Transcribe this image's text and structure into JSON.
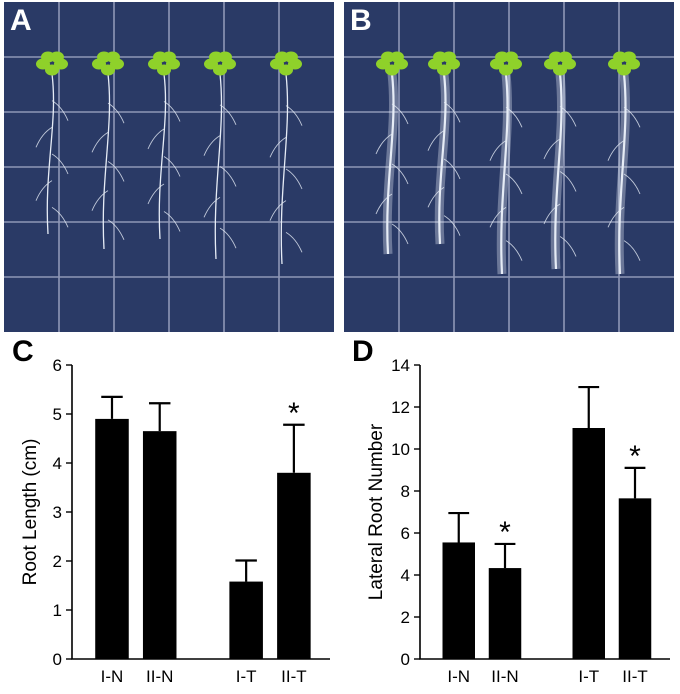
{
  "panels": {
    "a": {
      "letter": "A"
    },
    "b": {
      "letter": "B"
    },
    "c": {
      "letter": "C"
    },
    "d": {
      "letter": "D"
    }
  },
  "photos": {
    "plate_color": "#2a3a66",
    "grid_color": "#8e97b6",
    "seedling_color": "#8fd12a",
    "root_color": "#e6ecf6"
  },
  "chart_data": [
    {
      "type": "bar",
      "panel": "C",
      "ylabel": "Root  Length (cm)",
      "categories": [
        "I-N",
        "II-N",
        "I-T",
        "II-T"
      ],
      "values": [
        4.9,
        4.65,
        1.58,
        3.8
      ],
      "errors": [
        0.45,
        0.57,
        0.43,
        0.98
      ],
      "significant": [
        false,
        false,
        false,
        true
      ],
      "marker": "*",
      "ylim": [
        0,
        6
      ],
      "yticks": [
        "0",
        "1",
        "2",
        "3",
        "4",
        "5",
        "6"
      ],
      "bar_color": "#000000"
    },
    {
      "type": "bar",
      "panel": "D",
      "ylabel": "Lateral Root Number",
      "categories": [
        "I-N",
        "II-N",
        "I-T",
        "II-T"
      ],
      "values": [
        5.55,
        4.33,
        11.0,
        7.65
      ],
      "errors": [
        1.4,
        1.15,
        1.95,
        1.45
      ],
      "significant": [
        false,
        true,
        false,
        true
      ],
      "marker": "*",
      "ylim": [
        0,
        14
      ],
      "yticks": [
        "0",
        "2",
        "4",
        "6",
        "8",
        "10",
        "12",
        "14"
      ],
      "bar_color": "#000000"
    }
  ]
}
